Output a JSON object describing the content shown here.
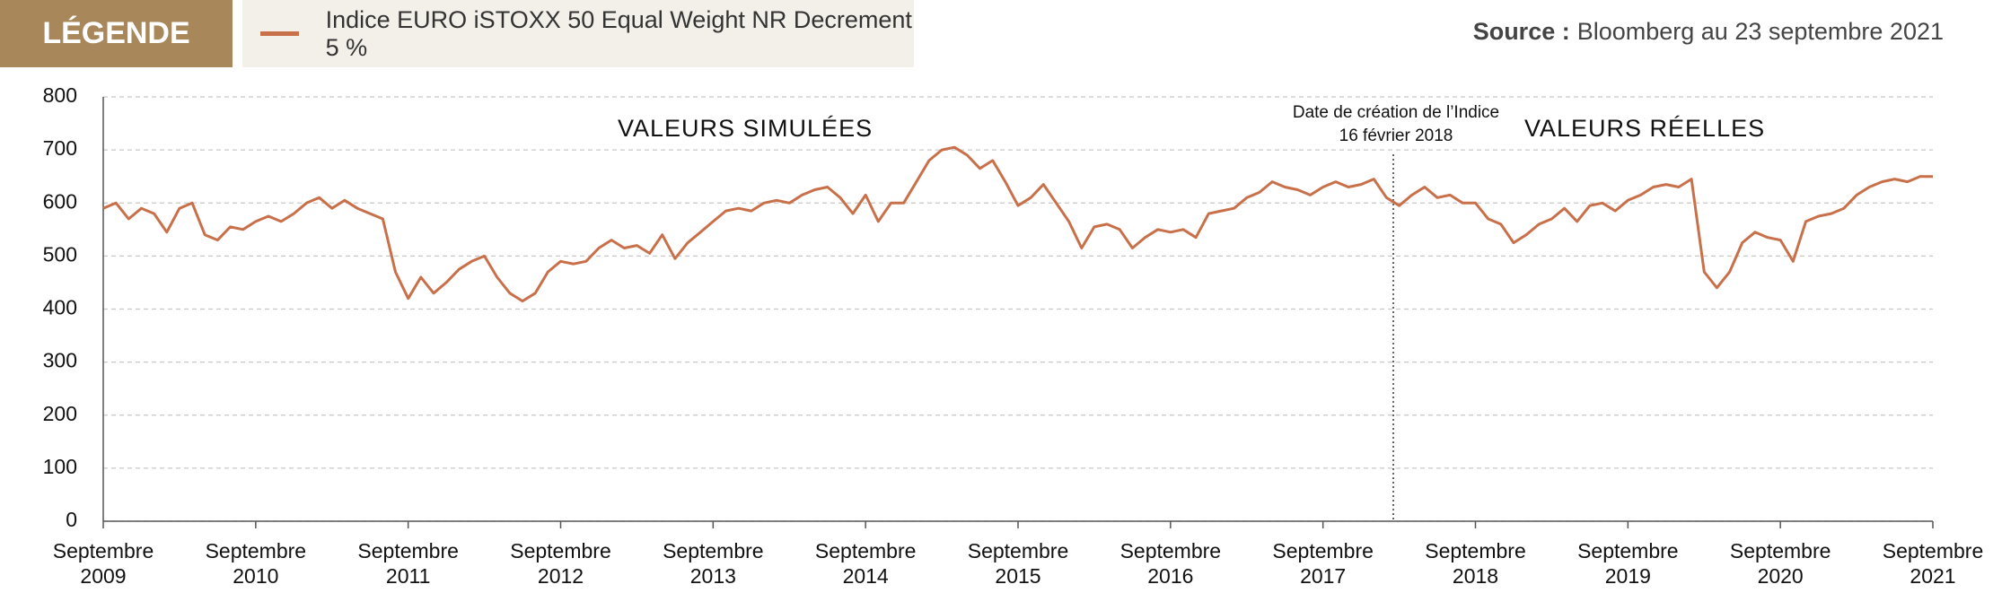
{
  "legend_title": "LÉGENDE",
  "source": {
    "label": "Source :",
    "text": "Bloomberg au 23 septembre 2021"
  },
  "chart_data": {
    "type": "line",
    "x": [
      "2009-09",
      "2009-10",
      "2009-11",
      "2009-12",
      "2010-01",
      "2010-02",
      "2010-03",
      "2010-04",
      "2010-05",
      "2010-06",
      "2010-07",
      "2010-08",
      "2010-09",
      "2010-10",
      "2010-11",
      "2010-12",
      "2011-01",
      "2011-02",
      "2011-03",
      "2011-04",
      "2011-05",
      "2011-06",
      "2011-07",
      "2011-08",
      "2011-09",
      "2011-10",
      "2011-11",
      "2011-12",
      "2012-01",
      "2012-02",
      "2012-03",
      "2012-04",
      "2012-05",
      "2012-06",
      "2012-07",
      "2012-08",
      "2012-09",
      "2012-10",
      "2012-11",
      "2012-12",
      "2013-01",
      "2013-02",
      "2013-03",
      "2013-04",
      "2013-05",
      "2013-06",
      "2013-07",
      "2013-08",
      "2013-09",
      "2013-10",
      "2013-11",
      "2013-12",
      "2014-01",
      "2014-02",
      "2014-03",
      "2014-04",
      "2014-05",
      "2014-06",
      "2014-07",
      "2014-08",
      "2014-09",
      "2014-10",
      "2014-11",
      "2014-12",
      "2015-01",
      "2015-02",
      "2015-03",
      "2015-04",
      "2015-05",
      "2015-06",
      "2015-07",
      "2015-08",
      "2015-09",
      "2015-10",
      "2015-11",
      "2015-12",
      "2016-01",
      "2016-02",
      "2016-03",
      "2016-04",
      "2016-05",
      "2016-06",
      "2016-07",
      "2016-08",
      "2016-09",
      "2016-10",
      "2016-11",
      "2016-12",
      "2017-01",
      "2017-02",
      "2017-03",
      "2017-04",
      "2017-05",
      "2017-06",
      "2017-07",
      "2017-08",
      "2017-09",
      "2017-10",
      "2017-11",
      "2017-12",
      "2018-01",
      "2018-02",
      "2018-03",
      "2018-04",
      "2018-05",
      "2018-06",
      "2018-07",
      "2018-08",
      "2018-09",
      "2018-10",
      "2018-11",
      "2018-12",
      "2019-01",
      "2019-02",
      "2019-03",
      "2019-04",
      "2019-05",
      "2019-06",
      "2019-07",
      "2019-08",
      "2019-09",
      "2019-10",
      "2019-11",
      "2019-12",
      "2020-01",
      "2020-02",
      "2020-03",
      "2020-04",
      "2020-05",
      "2020-06",
      "2020-07",
      "2020-08",
      "2020-09",
      "2020-10",
      "2020-11",
      "2020-12",
      "2021-01",
      "2021-02",
      "2021-03",
      "2021-04",
      "2021-05",
      "2021-06",
      "2021-07",
      "2021-08",
      "2021-09"
    ],
    "series": [
      {
        "name": "Indice EURO iSTOXX 50 Equal Weight NR Decrement 5 %",
        "color": "#c8704a",
        "values": [
          590,
          600,
          570,
          590,
          580,
          545,
          590,
          600,
          540,
          530,
          555,
          550,
          565,
          575,
          565,
          580,
          600,
          610,
          590,
          605,
          590,
          580,
          570,
          470,
          420,
          460,
          430,
          450,
          475,
          490,
          500,
          460,
          430,
          415,
          430,
          470,
          490,
          485,
          490,
          515,
          530,
          515,
          520,
          505,
          540,
          495,
          525,
          545,
          565,
          585,
          590,
          585,
          600,
          605,
          600,
          615,
          625,
          630,
          610,
          580,
          615,
          565,
          600,
          600,
          640,
          680,
          700,
          705,
          690,
          665,
          680,
          640,
          595,
          610,
          635,
          600,
          565,
          515,
          555,
          560,
          550,
          515,
          535,
          550,
          545,
          550,
          535,
          580,
          585,
          590,
          610,
          620,
          640,
          630,
          625,
          615,
          630,
          640,
          630,
          635,
          645,
          610,
          595,
          615,
          630,
          610,
          615,
          600,
          600,
          570,
          560,
          525,
          540,
          560,
          570,
          590,
          565,
          595,
          600,
          585,
          605,
          615,
          630,
          635,
          630,
          645,
          470,
          440,
          470,
          525,
          545,
          535,
          530,
          490,
          565,
          575,
          580,
          590,
          615,
          630,
          640,
          645,
          640,
          650,
          650
        ]
      }
    ],
    "xlim": [
      "2009-09",
      "2021-09"
    ],
    "xticks": [
      {
        "value": "2009-09",
        "label": "Septembre 2009"
      },
      {
        "value": "2010-09",
        "label": "Septembre 2010"
      },
      {
        "value": "2011-09",
        "label": "Septembre 2011"
      },
      {
        "value": "2012-09",
        "label": "Septembre 2012"
      },
      {
        "value": "2013-09",
        "label": "Septembre 2013"
      },
      {
        "value": "2014-09",
        "label": "Septembre 2014"
      },
      {
        "value": "2015-09",
        "label": "Septembre 2015"
      },
      {
        "value": "2016-09",
        "label": "Septembre 2016"
      },
      {
        "value": "2017-09",
        "label": "Septembre 2017"
      },
      {
        "value": "2018-09",
        "label": "Septembre 2018"
      },
      {
        "value": "2019-09",
        "label": "Septembre 2019"
      },
      {
        "value": "2020-09",
        "label": "Septembre 2020"
      },
      {
        "value": "2021-09",
        "label": "Septembre 2021"
      }
    ],
    "ylim": [
      0,
      800
    ],
    "yticks": [
      0,
      100,
      200,
      300,
      400,
      500,
      600,
      700,
      800
    ],
    "grid": true,
    "annotations": {
      "simulated": "VALEURS SIMULÉES",
      "real": "VALEURS RÉELLES"
    },
    "marker": {
      "x": "2018-02-16",
      "lines": [
        "Date de création de l’Indice",
        "16 février 2018"
      ]
    }
  }
}
